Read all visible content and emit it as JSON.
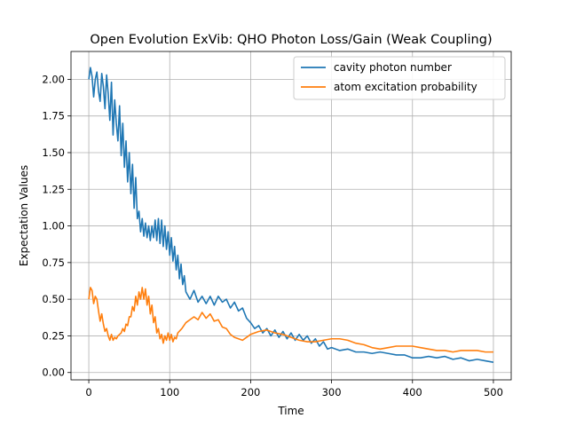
{
  "chart_data": {
    "type": "line",
    "title": "Open Evolution ExVib: QHO Photon Loss/Gain (Weak Coupling)",
    "xlabel": "Time",
    "ylabel": "Expectation Values",
    "xlim": [
      -22,
      522
    ],
    "ylim": [
      -0.05,
      2.19
    ],
    "xticks": [
      0,
      100,
      200,
      300,
      400,
      500
    ],
    "yticks": [
      0.0,
      0.25,
      0.5,
      0.75,
      1.0,
      1.25,
      1.5,
      1.75,
      2.0
    ],
    "xtick_labels": [
      "0",
      "100",
      "200",
      "300",
      "400",
      "500"
    ],
    "ytick_labels": [
      "0.00",
      "0.25",
      "0.50",
      "0.75",
      "1.00",
      "1.25",
      "1.50",
      "1.75",
      "2.00"
    ],
    "grid": true,
    "legend_position": "top-right",
    "series": [
      {
        "name": "cavity photon number",
        "color": "#1f77b4",
        "x": [
          0,
          2,
          4,
          6,
          8,
          10,
          12,
          14,
          16,
          18,
          20,
          22,
          24,
          26,
          28,
          30,
          32,
          34,
          36,
          38,
          40,
          42,
          44,
          46,
          48,
          50,
          52,
          54,
          56,
          58,
          60,
          62,
          64,
          66,
          68,
          70,
          72,
          74,
          76,
          78,
          80,
          82,
          84,
          86,
          88,
          90,
          92,
          94,
          96,
          98,
          100,
          102,
          104,
          106,
          108,
          110,
          112,
          114,
          116,
          118,
          120,
          125,
          130,
          135,
          140,
          145,
          150,
          155,
          160,
          165,
          170,
          175,
          180,
          185,
          190,
          195,
          200,
          205,
          210,
          215,
          220,
          225,
          230,
          235,
          240,
          245,
          250,
          255,
          260,
          265,
          270,
          275,
          280,
          285,
          290,
          295,
          300,
          310,
          320,
          330,
          340,
          350,
          360,
          370,
          380,
          390,
          400,
          410,
          420,
          430,
          440,
          450,
          460,
          470,
          480,
          490,
          500
        ],
        "y": [
          2.0,
          2.08,
          2.02,
          1.88,
          2.0,
          2.05,
          1.92,
          1.85,
          2.04,
          1.95,
          1.8,
          2.03,
          1.9,
          1.72,
          1.98,
          1.62,
          1.86,
          1.7,
          1.58,
          1.82,
          1.48,
          1.7,
          1.4,
          1.58,
          1.3,
          1.5,
          1.22,
          1.42,
          1.12,
          1.33,
          1.05,
          1.1,
          0.96,
          1.05,
          0.93,
          1.02,
          0.92,
          1.0,
          0.9,
          1.0,
          0.92,
          1.04,
          0.9,
          1.05,
          0.88,
          1.04,
          0.86,
          1.0,
          0.84,
          0.96,
          0.8,
          0.92,
          0.76,
          0.86,
          0.7,
          0.8,
          0.64,
          0.74,
          0.6,
          0.66,
          0.55,
          0.5,
          0.56,
          0.48,
          0.52,
          0.47,
          0.52,
          0.46,
          0.52,
          0.48,
          0.5,
          0.44,
          0.48,
          0.42,
          0.44,
          0.37,
          0.34,
          0.3,
          0.32,
          0.27,
          0.3,
          0.25,
          0.29,
          0.24,
          0.28,
          0.23,
          0.27,
          0.22,
          0.26,
          0.22,
          0.25,
          0.2,
          0.23,
          0.18,
          0.21,
          0.16,
          0.17,
          0.15,
          0.16,
          0.14,
          0.14,
          0.13,
          0.14,
          0.13,
          0.12,
          0.12,
          0.1,
          0.1,
          0.11,
          0.1,
          0.11,
          0.09,
          0.1,
          0.08,
          0.09,
          0.08,
          0.07
        ]
      },
      {
        "name": "atom excitation probability",
        "color": "#ff7f0e",
        "x": [
          0,
          2,
          4,
          6,
          8,
          10,
          12,
          14,
          16,
          18,
          20,
          22,
          24,
          26,
          28,
          30,
          32,
          34,
          36,
          38,
          40,
          42,
          44,
          46,
          48,
          50,
          52,
          54,
          56,
          58,
          60,
          62,
          64,
          66,
          68,
          70,
          72,
          74,
          76,
          78,
          80,
          82,
          84,
          86,
          88,
          90,
          92,
          94,
          96,
          98,
          100,
          102,
          104,
          106,
          108,
          110,
          115,
          120,
          125,
          130,
          135,
          140,
          145,
          150,
          155,
          160,
          165,
          170,
          175,
          180,
          185,
          190,
          200,
          210,
          220,
          230,
          240,
          250,
          260,
          270,
          280,
          290,
          300,
          310,
          320,
          330,
          340,
          350,
          360,
          370,
          380,
          390,
          400,
          410,
          420,
          430,
          440,
          450,
          460,
          470,
          480,
          490,
          500
        ],
        "y": [
          0.5,
          0.58,
          0.56,
          0.47,
          0.52,
          0.5,
          0.42,
          0.35,
          0.4,
          0.33,
          0.28,
          0.3,
          0.25,
          0.22,
          0.26,
          0.22,
          0.24,
          0.23,
          0.25,
          0.26,
          0.27,
          0.3,
          0.28,
          0.33,
          0.32,
          0.38,
          0.38,
          0.45,
          0.42,
          0.52,
          0.46,
          0.55,
          0.5,
          0.58,
          0.5,
          0.57,
          0.46,
          0.52,
          0.4,
          0.46,
          0.34,
          0.38,
          0.27,
          0.3,
          0.23,
          0.26,
          0.2,
          0.25,
          0.22,
          0.27,
          0.22,
          0.26,
          0.21,
          0.24,
          0.23,
          0.27,
          0.3,
          0.34,
          0.36,
          0.38,
          0.36,
          0.41,
          0.37,
          0.4,
          0.35,
          0.36,
          0.31,
          0.3,
          0.26,
          0.24,
          0.23,
          0.22,
          0.26,
          0.28,
          0.29,
          0.27,
          0.26,
          0.24,
          0.22,
          0.21,
          0.21,
          0.22,
          0.23,
          0.23,
          0.22,
          0.2,
          0.19,
          0.17,
          0.16,
          0.17,
          0.18,
          0.18,
          0.18,
          0.17,
          0.16,
          0.15,
          0.15,
          0.14,
          0.15,
          0.15,
          0.15,
          0.14,
          0.14
        ]
      }
    ]
  }
}
